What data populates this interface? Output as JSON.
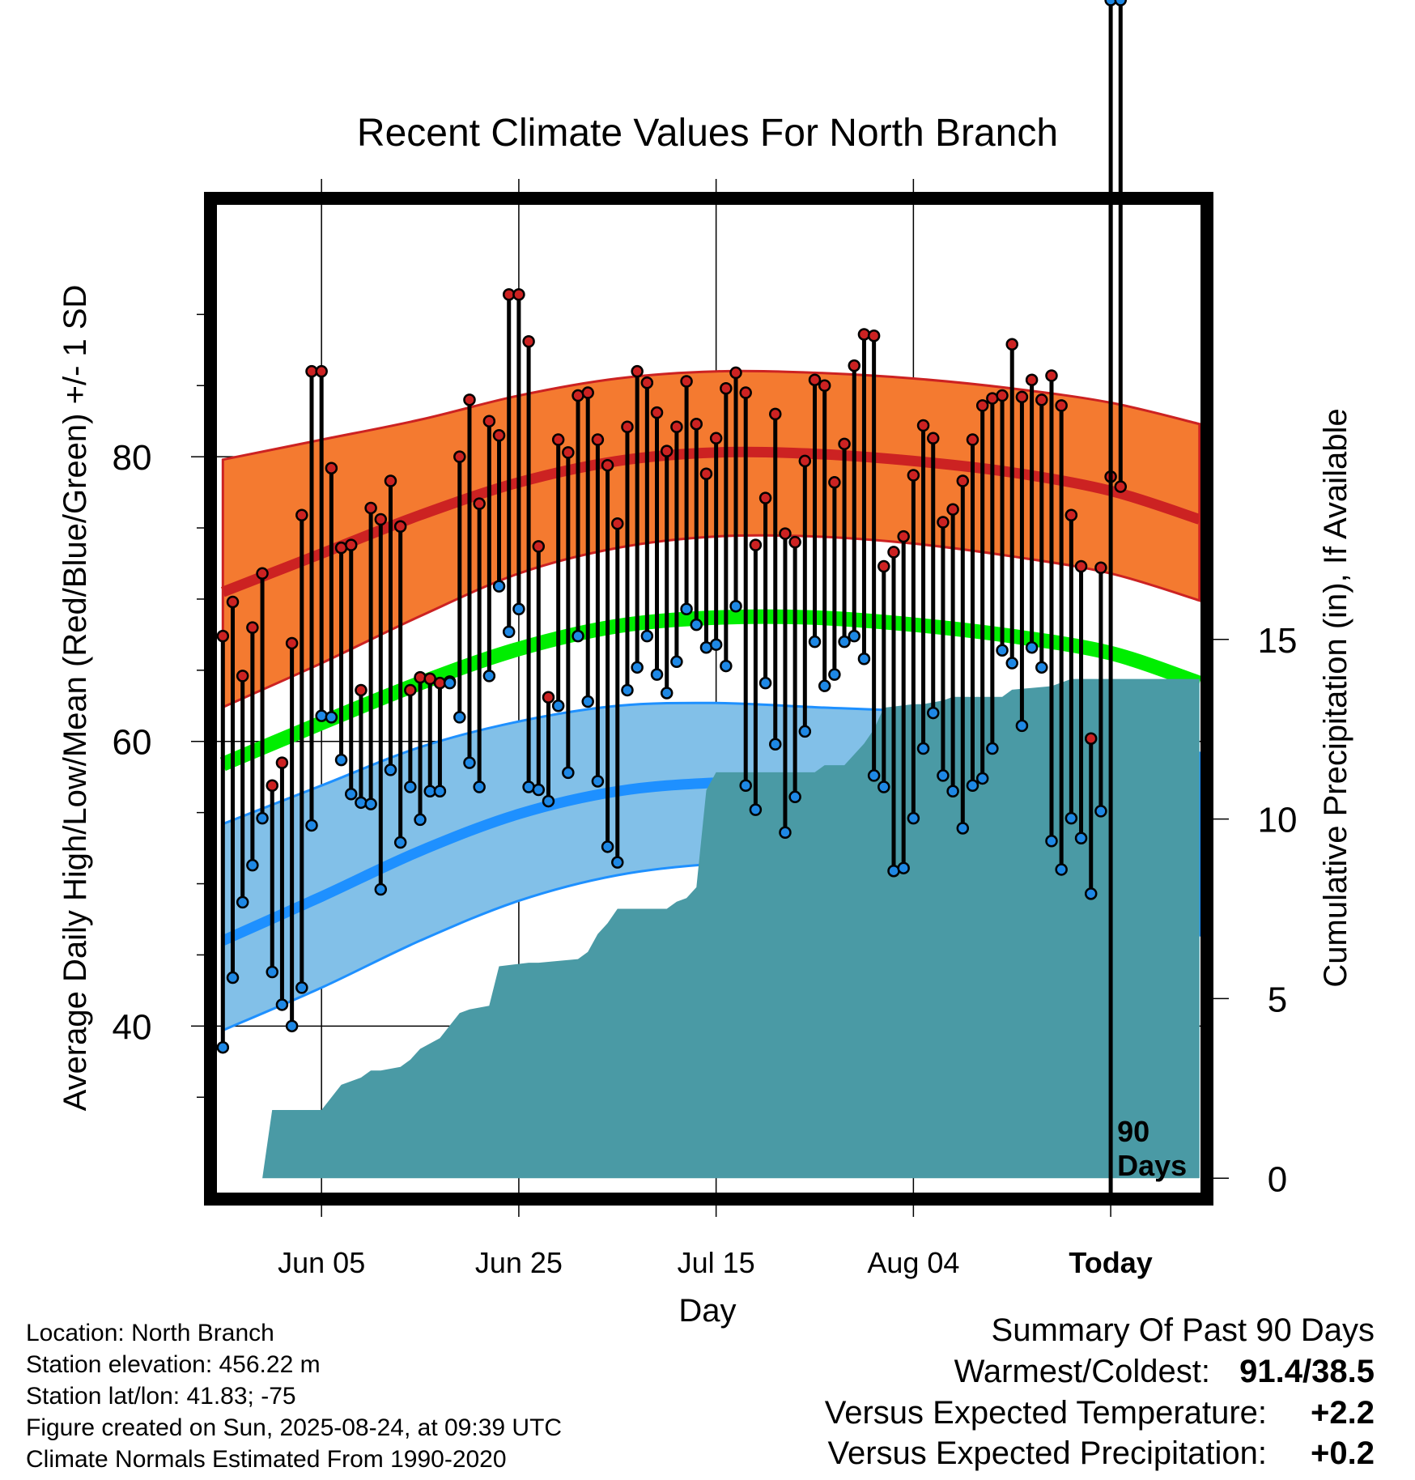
{
  "chart_data": {
    "type": "line",
    "title": "Recent Climate Values For North Branch",
    "xlabel": "Day",
    "ylabel": "Average Daily High/Low/Mean (Red/Blue/Green) +/- 1 SD",
    "y2label": "Cumulative Precipitation (in), If Available",
    "ylim": [
      28.3,
      97.7
    ],
    "y_ticks": [
      40,
      60,
      80
    ],
    "y2lim": [
      -0.4,
      27.1
    ],
    "y2_ticks": [
      0,
      5,
      10,
      15
    ],
    "x_ticks": [
      "Jun 05",
      "Jun 25",
      "Jul 15",
      "Aug 04",
      "Today"
    ],
    "x_tick_days": [
      10,
      30,
      50,
      70,
      90
    ],
    "xlim": [
      -0.6,
      99.1
    ],
    "today_day": 90,
    "today_label_line1": "90",
    "today_label_line2": "Days",
    "grid": true,
    "colors": {
      "high": "#cc2222",
      "high_band": "#f47a30",
      "low": "#1e90ff",
      "low_band": "#82c0e8",
      "mean": "#00ee00",
      "precip": "#4a9aa5",
      "high_point": "#cc2222",
      "low_point": "#1e88e5"
    },
    "normals": {
      "x": [
        0,
        10,
        20,
        30,
        40,
        50,
        60,
        70,
        80,
        90,
        99
      ],
      "high_mean": [
        70.5,
        73.2,
        75.9,
        78.2,
        79.7,
        80.3,
        80.2,
        79.7,
        78.9,
        77.6,
        75.6
      ],
      "high_upper": [
        79.8,
        81.2,
        82.6,
        84.3,
        85.5,
        86.0,
        85.9,
        85.5,
        84.8,
        83.8,
        82.3
      ],
      "high_lower": [
        62.4,
        65.5,
        68.8,
        71.8,
        73.6,
        74.4,
        74.4,
        73.9,
        73.0,
        71.8,
        69.9
      ],
      "mean": [
        58.4,
        61.3,
        64.1,
        66.5,
        68.1,
        68.7,
        68.7,
        68.2,
        67.4,
        66.2,
        64.1
      ],
      "low_mean": [
        46.0,
        49.1,
        52.3,
        54.9,
        56.5,
        57.1,
        57.1,
        56.7,
        55.8,
        54.6,
        52.6
      ],
      "low_upper": [
        54.2,
        56.9,
        59.6,
        61.4,
        62.5,
        62.7,
        62.4,
        62.1,
        61.5,
        60.7,
        59.2
      ],
      "low_lower": [
        39.7,
        42.7,
        46.0,
        48.8,
        50.6,
        51.4,
        51.5,
        51.3,
        50.3,
        48.7,
        46.4
      ]
    },
    "series": [
      {
        "name": "High",
        "values": [
          67.4,
          69.8,
          64.6,
          68.0,
          71.8,
          56.9,
          58.5,
          66.9,
          75.9,
          86.0,
          86.0,
          79.2,
          73.6,
          73.8,
          63.6,
          76.4,
          75.6,
          78.3,
          75.1,
          63.6,
          64.5,
          64.4,
          64.1,
          64.2,
          80.0,
          84.0,
          76.7,
          82.5,
          81.5,
          91.4,
          91.4,
          88.1,
          73.7,
          63.1,
          81.2,
          80.3,
          84.3,
          84.5,
          81.2,
          79.4,
          75.3,
          82.1,
          86.0,
          85.2,
          83.1,
          80.4,
          82.1,
          85.3,
          82.3,
          78.8,
          81.3,
          84.8,
          85.9,
          84.5,
          73.8,
          77.1,
          83.0,
          74.6,
          74.0,
          79.7,
          85.4,
          85.0,
          78.2,
          80.9,
          86.4,
          88.6,
          88.5,
          72.3,
          73.3,
          74.4,
          78.7,
          82.2,
          81.3,
          75.4,
          76.3,
          78.3,
          81.2,
          83.6,
          84.1,
          84.3,
          87.9,
          84.2,
          85.4,
          84.0,
          85.7,
          83.6,
          75.9,
          72.3,
          60.2,
          72.2,
          78.6,
          77.9
        ]
      },
      {
        "name": "Low",
        "values": [
          38.5,
          43.4,
          48.7,
          51.3,
          54.6,
          43.8,
          41.5,
          40.0,
          42.7,
          54.1,
          61.8,
          61.7,
          58.7,
          56.3,
          55.7,
          55.6,
          49.6,
          58.0,
          52.9,
          56.8,
          54.5,
          56.5,
          56.5,
          64.1,
          61.7,
          58.5,
          56.8,
          64.6,
          70.9,
          67.7,
          69.3,
          56.8,
          56.6,
          55.8,
          62.5,
          57.8,
          67.4,
          62.8,
          57.2,
          52.6,
          51.5,
          63.6,
          65.2,
          67.4,
          64.7,
          63.4,
          65.6,
          69.3,
          68.2,
          66.6,
          66.8,
          65.3,
          69.5,
          56.9,
          55.2,
          64.1,
          59.8,
          53.6,
          56.1,
          60.7,
          67.0,
          63.9,
          64.7,
          67.0,
          67.4,
          65.8,
          57.6,
          56.8,
          50.9,
          51.1,
          54.6,
          59.5,
          62.0,
          57.6,
          56.5,
          53.9,
          56.9,
          57.4,
          59.5,
          66.4,
          65.5,
          61.1,
          66.6,
          65.2,
          53.0,
          51.0,
          54.6,
          53.2,
          49.3,
          55.1
        ]
      },
      {
        "name": "Cumulative Precipitation",
        "x": [
          0,
          4,
          5,
          10,
          12,
          14,
          15,
          16,
          18,
          19,
          20,
          22,
          24,
          25,
          27,
          28,
          31,
          32,
          36,
          37,
          38,
          39,
          40,
          45,
          46,
          47,
          48,
          49,
          50,
          51,
          60,
          61,
          62,
          63,
          65,
          66,
          67,
          70,
          71,
          73,
          74,
          79,
          80,
          84,
          86,
          99
        ],
        "values": [
          0.0,
          0.0,
          1.9,
          1.9,
          2.6,
          2.8,
          3.0,
          3.0,
          3.1,
          3.3,
          3.6,
          3.9,
          4.6,
          4.7,
          4.8,
          5.9,
          6.0,
          6.0,
          6.1,
          6.3,
          6.8,
          7.1,
          7.5,
          7.5,
          7.7,
          7.8,
          8.1,
          10.8,
          11.3,
          11.3,
          11.3,
          11.5,
          11.5,
          11.5,
          12.1,
          12.5,
          13.1,
          13.2,
          13.2,
          13.3,
          13.4,
          13.4,
          13.6,
          13.7,
          13.9,
          13.9
        ]
      }
    ]
  },
  "footer": {
    "location": "Location: North Branch",
    "elevation": "Station elevation: 456.22 m",
    "latlon": "Station lat/lon: 41.83; -75",
    "created": "Figure created on Sun, 2025-08-24, at 09:39 UTC",
    "normals_note": "Climate Normals Estimated From 1990-2020"
  },
  "summary": {
    "heading": "Summary Of Past 90 Days",
    "warmest_label": "Warmest/Coldest:",
    "warmest_value": "91.4",
    "warmest_sep": "/",
    "coldest_value": "38.5",
    "temp_label": "Versus Expected Temperature:",
    "temp_value": "+2.2",
    "temp_color": "#cc2222",
    "precip_label": "Versus Expected Precipitation:",
    "precip_value": "+0.2",
    "precip_color": "#22cc22"
  }
}
